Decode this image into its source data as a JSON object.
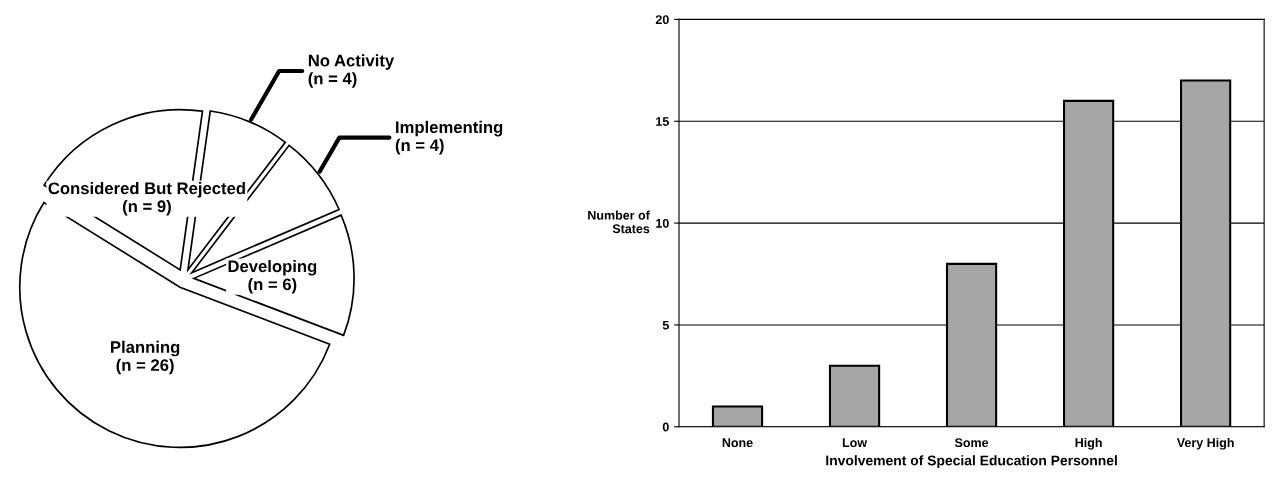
{
  "chart_data": [
    {
      "type": "pie",
      "categories": [
        "No Activity",
        "Implementing",
        "Developing",
        "Planning",
        "Considered But Rejected"
      ],
      "values": [
        4,
        4,
        6,
        26,
        9
      ],
      "value_labels": [
        "(n = 4)",
        "(n = 4)",
        "(n = 6)",
        "(n = 26)",
        "(n = 9)"
      ],
      "colors": [
        "#ffffff",
        "#ffffff",
        "#ffffff",
        "#ffffff",
        "#ffffff"
      ],
      "legend": false
    },
    {
      "type": "bar",
      "categories": [
        "None",
        "Low",
        "Some",
        "High",
        "Very High"
      ],
      "values": [
        1,
        3,
        8,
        16,
        17
      ],
      "color": "#a6a6a6",
      "xlabel": "Involvement of Special Education Personnel",
      "ylabel": "Number of\nStates",
      "ylim": [
        0,
        20
      ],
      "yticks": [
        0,
        5,
        10,
        15,
        20
      ],
      "grid": "y",
      "legend": false
    }
  ]
}
